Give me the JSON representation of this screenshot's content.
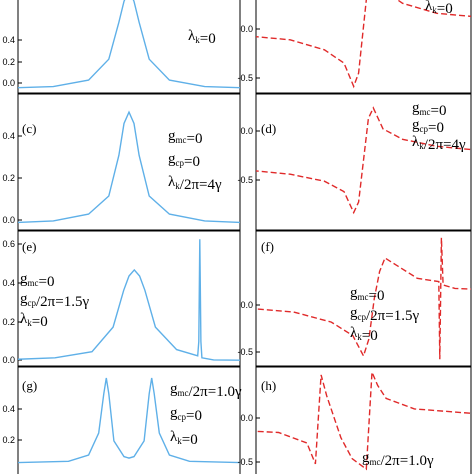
{
  "chart_data": [
    {
      "id": "a",
      "type": "line",
      "label": "",
      "style": "solid-blue",
      "annotations": [
        "λk=0"
      ],
      "yticks": [
        "0.0",
        "0.2",
        "0.4"
      ],
      "series": [
        {
          "x": [
            -3,
            -1.5,
            -0.8,
            -0.4,
            -0.2,
            -0.1,
            0,
            0.1,
            0.2,
            0.4,
            0.8,
            1.5,
            3
          ],
          "y": [
            0.005,
            0.02,
            0.06,
            0.19,
            0.42,
            0.55,
            0.62,
            0.55,
            0.42,
            0.19,
            0.06,
            0.02,
            0.005
          ]
        }
      ]
    },
    {
      "id": "b",
      "type": "line",
      "label": "",
      "style": "dashed-red",
      "annotations": [
        "λk=0"
      ],
      "yticks": [
        "0.0",
        "-0.5"
      ],
      "series": [
        {
          "x": [
            -3,
            -1.5,
            -0.8,
            -0.4,
            -0.2,
            -0.1,
            0,
            0.1,
            0.2,
            0.4,
            0.8,
            1.5,
            3
          ],
          "y": [
            -0.1,
            -0.2,
            -0.35,
            -0.55,
            -0.9,
            -0.7,
            0,
            0.7,
            0.9,
            0.55,
            0.35,
            0.2,
            0.1
          ]
        }
      ]
    },
    {
      "id": "c",
      "type": "line",
      "label": "(c)",
      "style": "solid-blue",
      "annotations": [
        "gmc=0",
        "gcp=0",
        "λk/2π=4γ"
      ],
      "yticks": [
        "0.0",
        "0.2",
        "0.4"
      ],
      "series": [
        {
          "x": [
            -3,
            -1.5,
            -0.8,
            -0.4,
            -0.2,
            -0.1,
            0,
            0.1,
            0.2,
            0.4,
            0.8,
            1.5,
            3
          ],
          "y": [
            0.005,
            0.02,
            0.05,
            0.13,
            0.31,
            0.45,
            0.5,
            0.45,
            0.31,
            0.13,
            0.05,
            0.02,
            0.005
          ]
        }
      ]
    },
    {
      "id": "d",
      "type": "line",
      "label": "(d)",
      "style": "dashed-red",
      "annotations": [
        "gmc=0",
        "gcp=0",
        "λk/2π=4γ"
      ],
      "yticks": [
        "0.0",
        "-0.5"
      ],
      "series": [
        {
          "x": [
            -3,
            -1.5,
            -0.8,
            -0.4,
            -0.2,
            -0.1,
            0,
            0.1,
            0.2,
            0.4,
            0.8,
            1.5,
            3
          ],
          "y": [
            -0.1,
            -0.2,
            -0.3,
            -0.45,
            -0.75,
            -0.6,
            0,
            0.6,
            0.75,
            0.45,
            0.3,
            0.2,
            0.1
          ]
        }
      ]
    },
    {
      "id": "e",
      "type": "line",
      "label": "(e)",
      "style": "solid-blue",
      "annotations": [
        "gmc=0",
        "gcp/2π=1.5γ",
        "λk=0"
      ],
      "yticks": [
        "0.0",
        "0.2",
        "0.4",
        "0.6"
      ],
      "series": [
        {
          "x": [
            -3,
            -1.5,
            -0.8,
            -0.4,
            -0.2,
            -0.1,
            0,
            0.1,
            0.2,
            0.4,
            0.8,
            1.2,
            1.22,
            1.24,
            1.26,
            1.28,
            1.5,
            3
          ],
          "y": [
            0.005,
            0.02,
            0.05,
            0.17,
            0.35,
            0.42,
            0.45,
            0.42,
            0.35,
            0.17,
            0.06,
            0.03,
            0.1,
            0.6,
            0.1,
            0.02,
            0.01,
            0.005
          ]
        }
      ]
    },
    {
      "id": "f",
      "type": "line",
      "label": "(f)",
      "style": "dashed-red",
      "annotations": [
        "gmc=0",
        "gcp/2π=1.5γ",
        "λk=0"
      ],
      "yticks": [
        "0.0",
        "-0.5"
      ],
      "series": [
        {
          "x": [
            -3,
            -1.5,
            -0.8,
            -0.4,
            -0.2,
            -0.1,
            0,
            0.1,
            0.2,
            0.4,
            0.8,
            1.2,
            1.22,
            1.25,
            1.28,
            1.5,
            3
          ],
          "y": [
            -0.1,
            -0.2,
            -0.35,
            -0.55,
            -0.85,
            -0.6,
            0,
            0.4,
            0.6,
            0.5,
            0.3,
            0.25,
            -0.9,
            0.9,
            0.2,
            0.15,
            0.1
          ]
        }
      ]
    },
    {
      "id": "g",
      "type": "line",
      "label": "(g)",
      "style": "solid-blue",
      "annotations": [
        "gmc/2π=1.0γ",
        "gcp=0",
        "λk=0"
      ],
      "yticks": [
        "0.2",
        "0.4"
      ],
      "series": [
        {
          "x": [
            -3,
            -1.2,
            -0.8,
            -0.6,
            -0.5,
            -0.45,
            -0.4,
            -0.3,
            -0.1,
            0,
            0.1,
            0.3,
            0.4,
            0.45,
            0.5,
            0.6,
            0.8,
            1.2,
            3
          ],
          "y": [
            0.005,
            0.02,
            0.06,
            0.2,
            0.45,
            0.55,
            0.45,
            0.15,
            0.05,
            0.04,
            0.05,
            0.15,
            0.45,
            0.55,
            0.45,
            0.2,
            0.06,
            0.02,
            0.005
          ]
        }
      ]
    },
    {
      "id": "h",
      "type": "line",
      "label": "(h)",
      "style": "dashed-red",
      "annotations": [
        "gmc/2π=1.0γ",
        "gcp=0"
      ],
      "yticks": [
        "0.0",
        "-0.5"
      ],
      "series": [
        {
          "x": [
            -3,
            -1.2,
            -0.7,
            -0.55,
            -0.45,
            -0.35,
            -0.1,
            0,
            0.1,
            0.35,
            0.45,
            0.55,
            0.7,
            1.2,
            3
          ],
          "y": [
            -0.1,
            -0.2,
            -0.4,
            -0.8,
            0.9,
            0.5,
            -0.3,
            -0.5,
            -0.7,
            -0.9,
            0.95,
            0.7,
            0.45,
            0.25,
            0.1
          ]
        }
      ]
    }
  ]
}
